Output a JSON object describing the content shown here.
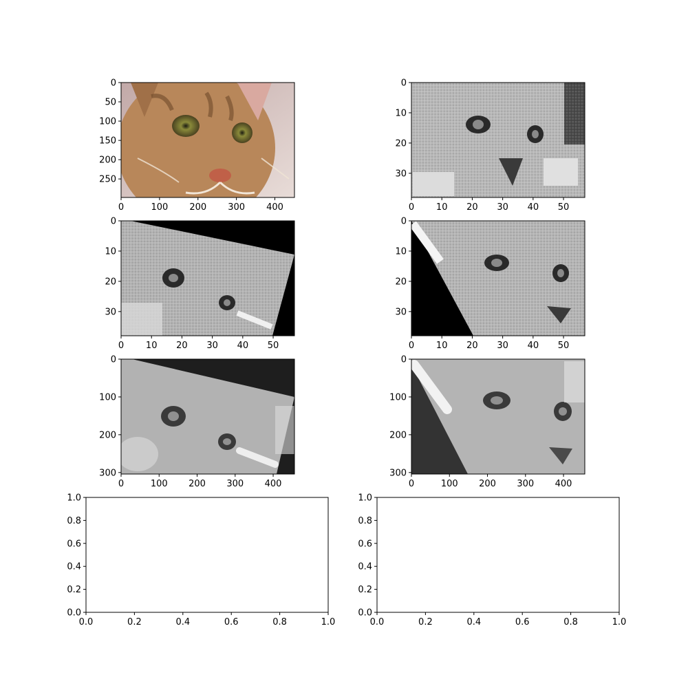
{
  "figure": {
    "background": "#ffffff"
  },
  "chart_data": [
    {
      "type": "image",
      "content": "color-photo",
      "subject": "tabby cat face",
      "colors": {
        "fur": "#b8875a",
        "dark": "#6e4a2a",
        "eye": "#8a8a3a",
        "background": "#c2a9a8"
      },
      "xlim": [
        0,
        451
      ],
      "ylim": [
        298,
        0
      ],
      "xticks": [
        0,
        100,
        200,
        300,
        400
      ],
      "yticks": [
        0,
        50,
        100,
        150,
        200,
        250
      ],
      "grid": false
    },
    {
      "type": "image",
      "content": "grayscale-pixelated",
      "subject": "tabby cat face, downsampled",
      "xlim": [
        0,
        57
      ],
      "ylim": [
        38,
        0
      ],
      "xticks": [
        0,
        10,
        20,
        30,
        40,
        50
      ],
      "yticks": [
        0,
        10,
        20,
        30
      ],
      "grid": false
    },
    {
      "type": "image",
      "content": "grayscale-pixelated-rotated",
      "subject": "cat face rotated, black corners",
      "xlim": [
        0,
        57
      ],
      "ylim": [
        38,
        0
      ],
      "xticks": [
        0,
        10,
        20,
        30,
        40,
        50
      ],
      "yticks": [
        0,
        10,
        20,
        30
      ],
      "grid": false
    },
    {
      "type": "image",
      "content": "grayscale-pixelated-sheared",
      "subject": "cat face sheared, black lower-left triangle",
      "xlim": [
        0,
        57
      ],
      "ylim": [
        38,
        0
      ],
      "xticks": [
        0,
        10,
        20,
        30,
        40,
        50
      ],
      "yticks": [
        0,
        10,
        20,
        30
      ],
      "grid": false
    },
    {
      "type": "image",
      "content": "grayscale-smooth-rotated",
      "subject": "cat face rotated and upsampled, dark corners",
      "xlim": [
        0,
        456
      ],
      "ylim": [
        304,
        0
      ],
      "xticks": [
        0,
        100,
        200,
        300,
        400
      ],
      "yticks": [
        0,
        100,
        200,
        300
      ],
      "grid": false
    },
    {
      "type": "image",
      "content": "grayscale-smooth-sheared",
      "subject": "cat face sheared and upsampled, dark lower-left triangle",
      "xlim": [
        0,
        456
      ],
      "ylim": [
        304,
        0
      ],
      "xticks": [
        0,
        100,
        200,
        300,
        400
      ],
      "yticks": [
        0,
        100,
        200,
        300
      ],
      "grid": false
    },
    {
      "type": "empty",
      "xlim": [
        0,
        1
      ],
      "ylim": [
        0,
        1
      ],
      "xticks": [
        0.0,
        0.2,
        0.4,
        0.6,
        0.8,
        1.0
      ],
      "yticks": [
        0.0,
        0.2,
        0.4,
        0.6,
        0.8,
        1.0
      ],
      "xticklabels": [
        "0.0",
        "0.2",
        "0.4",
        "0.6",
        "0.8",
        "1.0"
      ],
      "yticklabels": [
        "0.0",
        "0.2",
        "0.4",
        "0.6",
        "0.8",
        "1.0"
      ],
      "grid": false
    },
    {
      "type": "empty",
      "xlim": [
        0,
        1
      ],
      "ylim": [
        0,
        1
      ],
      "xticks": [
        0.0,
        0.2,
        0.4,
        0.6,
        0.8,
        1.0
      ],
      "yticks": [
        0.0,
        0.2,
        0.4,
        0.6,
        0.8,
        1.0
      ],
      "xticklabels": [
        "0.0",
        "0.2",
        "0.4",
        "0.6",
        "0.8",
        "1.0"
      ],
      "yticklabels": [
        "0.0",
        "0.2",
        "0.4",
        "0.6",
        "0.8",
        "1.0"
      ],
      "grid": false
    }
  ]
}
